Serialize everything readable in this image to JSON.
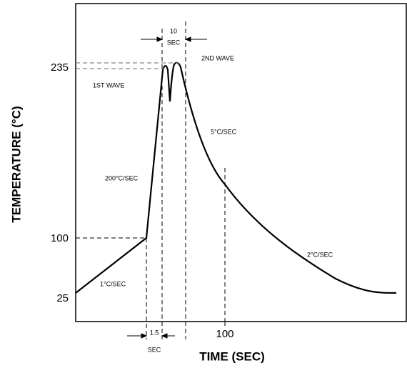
{
  "axes": {
    "y_title": "TEMPERATURE (°C)",
    "x_title": "TIME (SEC)",
    "y_ticks": [
      "235",
      "100",
      "25"
    ],
    "x_ticks": [
      "100"
    ]
  },
  "annotations": {
    "first_wave": "1ST WAVE",
    "second_wave": "2ND WAVE",
    "rate_ramp": "200°C/SEC",
    "rate_cool_fast": "5°C/SEC",
    "rate_cool_slow": "2°C/SEC",
    "rate_preheat": "1°C/SEC",
    "span_top": [
      "10",
      "SEC"
    ],
    "span_bottom": [
      "1.5",
      "SEC"
    ]
  }
}
